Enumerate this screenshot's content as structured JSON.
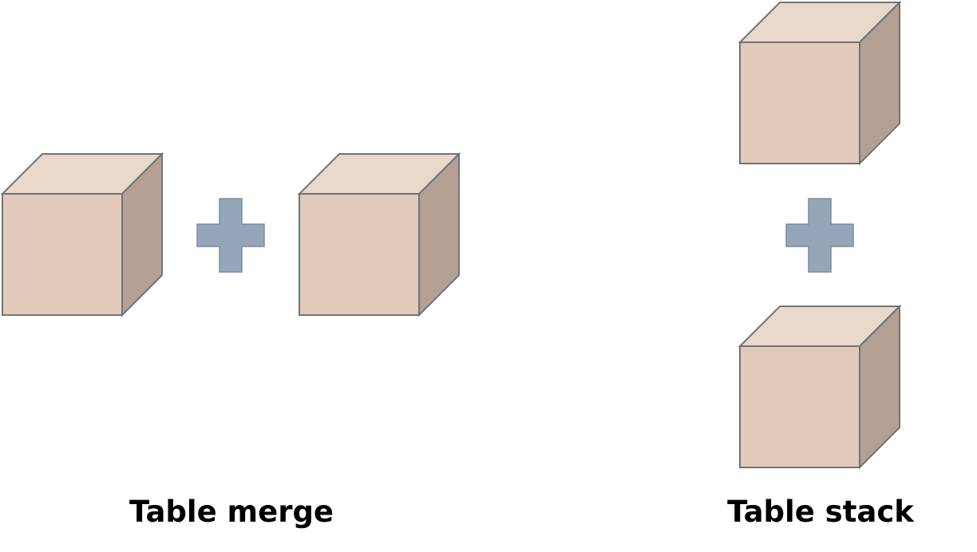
{
  "labels": {
    "merge": "Table merge",
    "stack": "Table stack"
  },
  "colors": {
    "cube_front": "#e1cab9",
    "cube_top": "#ead8cb",
    "cube_side": "#b4a193",
    "cube_outline": "#6f7478",
    "plus_fill": "#94a6b8",
    "plus_outline": "#7c8fa0",
    "text": "#000000"
  },
  "icons": [
    "cube-icon",
    "plus-icon"
  ]
}
